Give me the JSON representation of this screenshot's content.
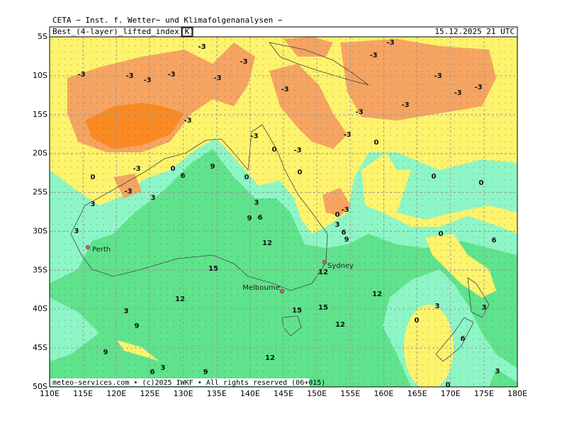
{
  "header": {
    "provider": "CETA − Inst. f. Wetter− und Klimafolgenanalysen −",
    "field": "Best_(4-layer)_lifted_index",
    "unit": "[K]",
    "valid_time": "15.12.2025 21 UTC"
  },
  "map": {
    "lat_labels": [
      "5S",
      "10S",
      "15S",
      "20S",
      "25S",
      "30S",
      "35S",
      "40S",
      "45S",
      "50S"
    ],
    "lon_labels": [
      "110E",
      "115E",
      "120E",
      "125E",
      "130E",
      "135E",
      "140E",
      "145E",
      "150E",
      "155E",
      "160E",
      "165E",
      "170E",
      "175E",
      "180E"
    ],
    "cities": [
      "Perth",
      "Sydney",
      "Melbourne"
    ],
    "contour_labels": [
      "-3",
      "-3",
      "-3",
      "-3",
      "-3",
      "-3",
      "-3",
      "-3",
      "-3",
      "-3",
      "-3",
      "-3",
      "-3",
      "-3",
      "-3",
      "-3",
      "-3",
      "-3",
      "-3",
      "-3",
      "-3",
      "-3",
      "0",
      "0",
      "0",
      "0",
      "0",
      "0",
      "0",
      "0",
      "0",
      "0",
      "0",
      "0",
      "3",
      "3",
      "3",
      "3",
      "3",
      "3",
      "3",
      "3",
      "3",
      "3",
      "6",
      "6",
      "6",
      "6",
      "6",
      "6",
      "9",
      "9",
      "9",
      "9",
      "9",
      "9",
      "12",
      "12",
      "12",
      "12",
      "12",
      "12",
      "15",
      "15",
      "15"
    ]
  },
  "footer": "meteo-services.com • (c)2025 IWKF • All rights reserved (06+015)"
}
